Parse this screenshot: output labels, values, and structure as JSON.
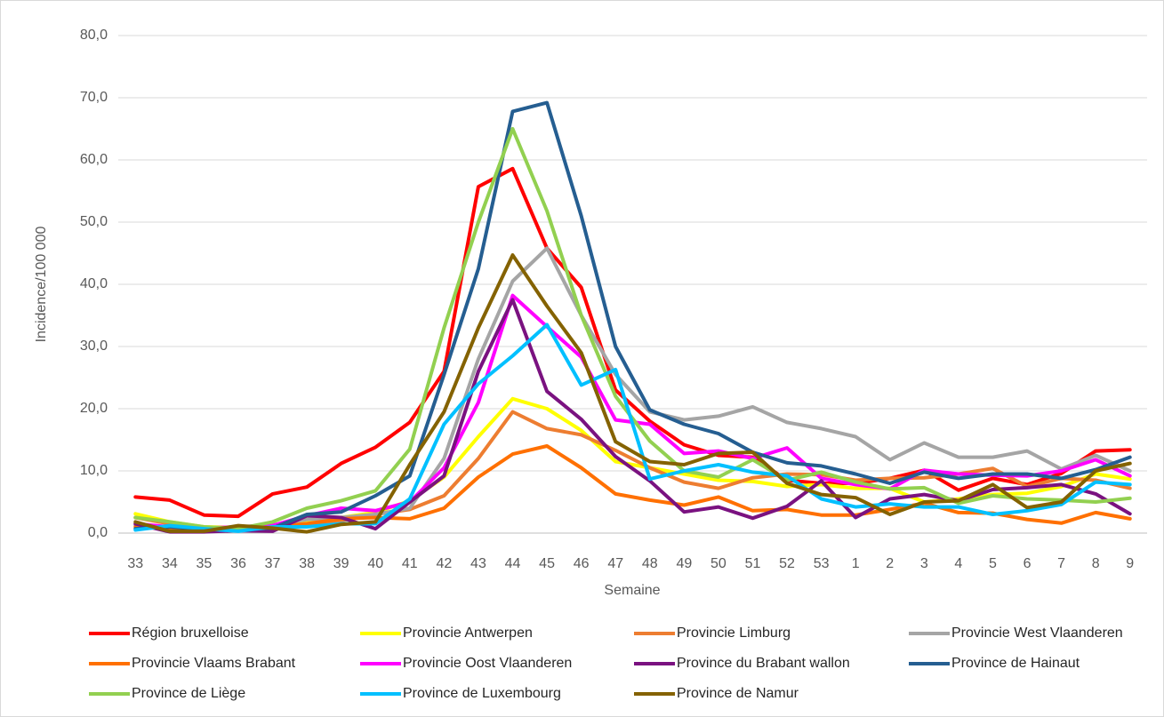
{
  "chart_data": {
    "type": "line",
    "x_label": "Semaine",
    "y_label": "Incidence/100 000",
    "categories": [
      "33",
      "34",
      "35",
      "36",
      "37",
      "38",
      "39",
      "40",
      "41",
      "42",
      "43",
      "44",
      "45",
      "46",
      "47",
      "48",
      "49",
      "50",
      "51",
      "52",
      "53",
      "1",
      "2",
      "3",
      "4",
      "5",
      "6",
      "7",
      "8",
      "9"
    ],
    "ylim": [
      0,
      80
    ],
    "yticks": [
      {
        "value": 0,
        "label": "0,0"
      },
      {
        "value": 10,
        "label": "10,0"
      },
      {
        "value": 20,
        "label": "20,0"
      },
      {
        "value": 30,
        "label": "30,0"
      },
      {
        "value": 40,
        "label": "40,0"
      },
      {
        "value": 50,
        "label": "50,0"
      },
      {
        "value": 60,
        "label": "60,0"
      },
      {
        "value": 70,
        "label": "70,0"
      },
      {
        "value": 80,
        "label": "80,0"
      }
    ],
    "grid": true,
    "legend": "bottom",
    "series": [
      {
        "name": "Région bruxelloise",
        "color": "#ff0000",
        "values": [
          5.8,
          5.3,
          2.9,
          2.7,
          6.3,
          7.4,
          11.2,
          13.8,
          17.8,
          26,
          55.7,
          58.6,
          45.8,
          39.5,
          23,
          18,
          14.2,
          12.5,
          12.2,
          8.5,
          8,
          8,
          8.8,
          10.1,
          6.9,
          8.8,
          7.8,
          9.6,
          13.2,
          13.4
        ]
      },
      {
        "name": "Provincie Antwerpen",
        "color": "#ffff00",
        "values": [
          3.1,
          1.8,
          1,
          0.9,
          1.2,
          2,
          2.5,
          3.3,
          5.2,
          9,
          15.5,
          21.6,
          20,
          16.5,
          11.5,
          10.5,
          9.5,
          8.5,
          8.3,
          7.5,
          7.8,
          7.2,
          7.2,
          5,
          5.5,
          6.2,
          6.4,
          7.5,
          9.5,
          8.7
        ]
      },
      {
        "name": "Provincie Limburg",
        "color": "#ed7d31",
        "values": [
          2.5,
          1.5,
          0.8,
          0.8,
          1,
          1.5,
          2,
          3,
          3.8,
          6,
          12,
          19.5,
          16.8,
          15.8,
          13.3,
          10.5,
          8.2,
          7.2,
          8.9,
          9.5,
          9.4,
          8.5,
          8.8,
          8.9,
          9.5,
          10.4,
          7.5,
          8.8,
          8.5,
          7.2
        ]
      },
      {
        "name": "Provincie West Vlaanderen",
        "color": "#a5a5a5",
        "values": [
          1.2,
          1,
          0.7,
          1,
          1.3,
          2.2,
          2.5,
          3,
          4,
          12,
          28,
          40.5,
          45.8,
          35,
          25.5,
          19.5,
          18.2,
          18.8,
          20.3,
          17.8,
          16.8,
          15.5,
          11.8,
          14.5,
          12.2,
          12.2,
          13.2,
          10.3,
          12.5,
          10
        ]
      },
      {
        "name": "Provincie Vlaams Brabant",
        "color": "#ff7000",
        "values": [
          1,
          0.7,
          0.5,
          0.8,
          1,
          1.5,
          2.3,
          2.5,
          2.3,
          4,
          9,
          12.7,
          14,
          10.5,
          6.3,
          5.3,
          4.5,
          5.8,
          3.6,
          3.8,
          2.9,
          2.9,
          3.8,
          4.8,
          3.3,
          3.2,
          2.2,
          1.6,
          3.3,
          2.3
        ]
      },
      {
        "name": "Provincie Oost Vlaanderen",
        "color": "#ff00ff",
        "values": [
          1.5,
          1,
          0.8,
          1,
          1.2,
          2.8,
          4,
          3.6,
          5,
          10.5,
          21,
          38.2,
          33.2,
          28.3,
          18.2,
          17.5,
          12.8,
          13.2,
          12,
          13.7,
          8.8,
          7.8,
          7.1,
          10.1,
          9.5,
          9.3,
          9.2,
          10,
          11.8,
          9.2
        ]
      },
      {
        "name": "Province du Brabant wallon",
        "color": "#7a1280",
        "values": [
          1.5,
          0.2,
          0.2,
          0.4,
          0.3,
          2.8,
          2.5,
          0.7,
          5,
          9.2,
          26,
          37.5,
          22.8,
          18.3,
          12.3,
          8.4,
          3.4,
          4.2,
          2.4,
          4.3,
          8.4,
          2.5,
          5.5,
          6.2,
          5.2,
          7,
          7.3,
          7.8,
          6.3,
          3.1
        ]
      },
      {
        "name": "Province de Hainaut",
        "color": "#255e91",
        "values": [
          0.7,
          1,
          0.6,
          0.6,
          0.8,
          3,
          3.4,
          6,
          9.2,
          25.5,
          42.5,
          67.8,
          69.2,
          51,
          30,
          19.8,
          17.5,
          16,
          13,
          11.3,
          10.8,
          9.5,
          8,
          9.8,
          8.8,
          9.5,
          9.5,
          8.8,
          10.2,
          12.2
        ]
      },
      {
        "name": "Province de Liège",
        "color": "#92d050",
        "values": [
          2.5,
          1.8,
          1,
          0.7,
          1.8,
          4,
          5.2,
          6.8,
          13.5,
          33,
          50,
          65,
          51.8,
          35,
          22,
          14.8,
          10,
          9,
          11.8,
          8.5,
          9.8,
          8.2,
          7.1,
          7.3,
          4.8,
          6,
          5.5,
          5.3,
          5,
          5.6
        ]
      },
      {
        "name": "Province de Luxembourg",
        "color": "#00c0ff",
        "values": [
          0.5,
          1.2,
          0.7,
          0.3,
          1,
          1,
          1.5,
          1.5,
          5.5,
          17.5,
          24,
          28.5,
          33.5,
          23.8,
          26.3,
          8.7,
          10,
          11,
          9.8,
          9.2,
          5.5,
          4.2,
          4.7,
          4.2,
          4.2,
          3,
          3.6,
          4.6,
          8.2,
          7.8
        ]
      },
      {
        "name": "Province de Namur",
        "color": "#846200",
        "values": [
          1.8,
          0.3,
          0.3,
          1.2,
          0.8,
          0.2,
          1.4,
          1.8,
          11,
          19.5,
          33,
          44.7,
          36.5,
          29,
          14.7,
          11.5,
          11,
          12.8,
          13,
          8,
          6.2,
          5.7,
          3,
          5,
          5.2,
          7.8,
          4.1,
          5,
          10,
          11.2
        ]
      }
    ]
  }
}
